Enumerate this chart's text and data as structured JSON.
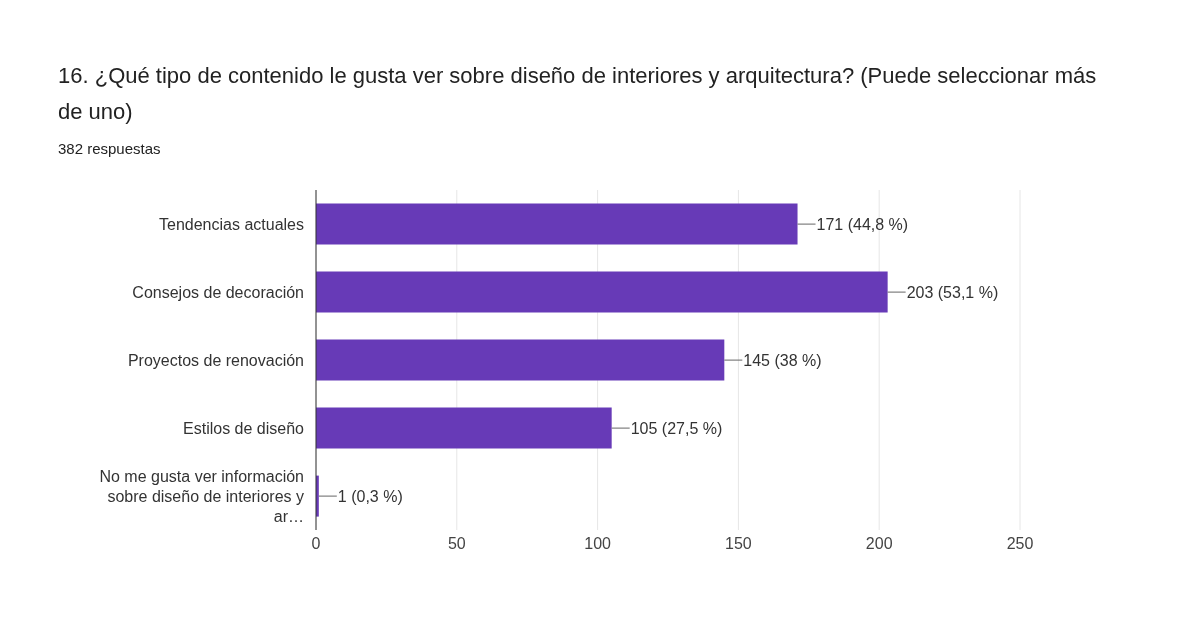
{
  "chart_data": {
    "type": "bar",
    "orientation": "horizontal",
    "title": "16.   ¿Qué tipo de contenido le gusta ver sobre diseño de interiores y arquitectura? (Puede seleccionar más de uno)",
    "subtitle": "382 respuestas",
    "categories": [
      "Tendencias actuales",
      "Consejos de decoración",
      "Proyectos de renovación",
      "Estilos de diseño",
      "No me gusta ver información sobre diseño de interiores y ar…"
    ],
    "values": [
      171,
      203,
      145,
      105,
      1
    ],
    "value_labels": [
      "171 (44,8 %)",
      "203 (53,1 %)",
      "145 (38 %)",
      "105 (27,5 %)",
      "1 (0,3 %)"
    ],
    "color": "#673ab7",
    "xlim": [
      0,
      250
    ],
    "xticks": [
      0,
      50,
      100,
      150,
      200,
      250
    ],
    "grid": "x",
    "legend": false
  }
}
